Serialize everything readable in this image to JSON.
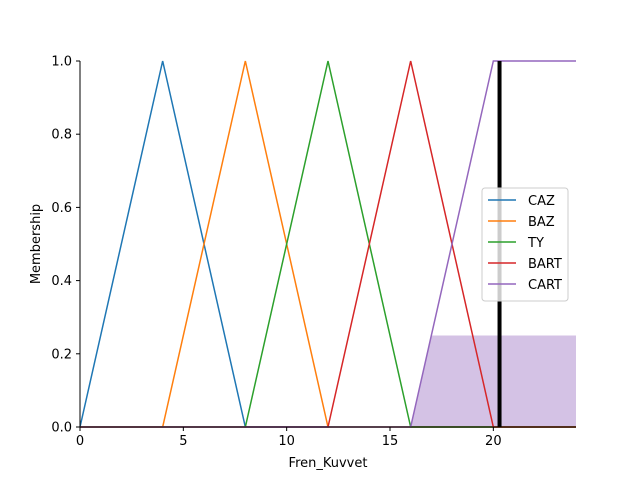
{
  "chart_data": {
    "type": "line",
    "xlabel": "Fren_Kuvvet",
    "ylabel": "Membership",
    "xlim": [
      0,
      24
    ],
    "ylim": [
      0,
      1
    ],
    "x_ticks": [
      0,
      5,
      10,
      15,
      20
    ],
    "y_ticks": [
      0.0,
      0.2,
      0.4,
      0.6,
      0.8,
      1.0
    ],
    "x_tick_labels": [
      "0",
      "5",
      "10",
      "15",
      "20"
    ],
    "y_tick_labels": [
      "0.0",
      "0.2",
      "0.4",
      "0.6",
      "0.8",
      "1.0"
    ],
    "grid": false,
    "legend_position": "right",
    "series": [
      {
        "name": "CAZ",
        "color": "#1f77b4",
        "x": [
          0,
          4,
          8,
          24
        ],
        "y": [
          0,
          1,
          0,
          0
        ]
      },
      {
        "name": "BAZ",
        "color": "#ff7f0e",
        "x": [
          0,
          4,
          8,
          12,
          24
        ],
        "y": [
          0,
          0,
          1,
          0,
          0
        ]
      },
      {
        "name": "TY",
        "color": "#2ca02c",
        "x": [
          0,
          8,
          12,
          16,
          24
        ],
        "y": [
          0,
          0,
          1,
          0,
          0
        ]
      },
      {
        "name": "BART",
        "color": "#d62728",
        "x": [
          0,
          12,
          16,
          20,
          24
        ],
        "y": [
          0,
          0,
          1,
          0,
          0
        ]
      },
      {
        "name": "CART",
        "color": "#9467bd",
        "x": [
          0,
          16,
          20,
          24
        ],
        "y": [
          0,
          0,
          1,
          1
        ]
      }
    ],
    "activation_fill": {
      "color": "#9467bd",
      "opacity": 0.4,
      "x": [
        16,
        17,
        24,
        24,
        16
      ],
      "y": [
        0,
        0.25,
        0.25,
        0,
        0
      ]
    },
    "crisp_output_line": {
      "x": 20.3,
      "y_from": 0,
      "y_to": 1,
      "color": "#000000"
    }
  }
}
